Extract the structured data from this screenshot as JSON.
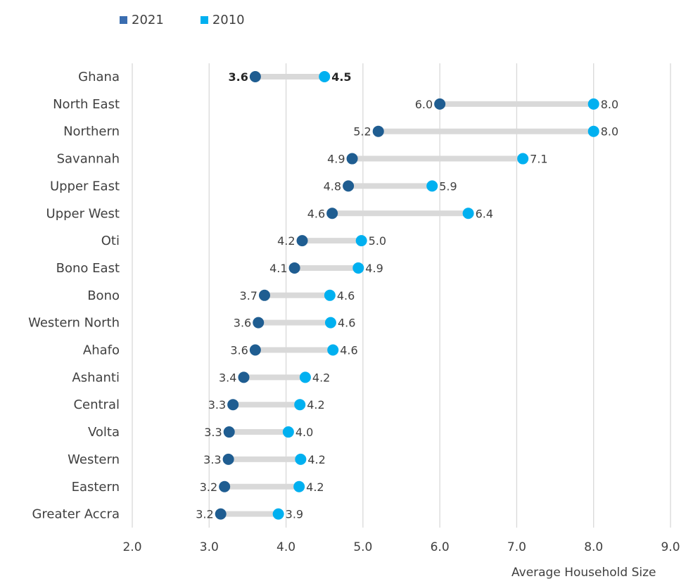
{
  "chart_data": {
    "type": "dumbbell",
    "xlabel": "Average Household Size",
    "xlim": [
      2.0,
      9.0
    ],
    "xticks": [
      "2.0",
      "3.0",
      "4.0",
      "5.0",
      "6.0",
      "7.0",
      "8.0",
      "9.0"
    ],
    "grid": true,
    "legend_position": "top-left",
    "series": [
      {
        "name": "2021",
        "color": "#1f5d91"
      },
      {
        "name": "2010",
        "color": "#00b0f0"
      }
    ],
    "categories": [
      "Ghana",
      "North East",
      "Northern",
      "Savannah",
      "Upper East",
      "Upper West",
      "Oti",
      "Bono East",
      "Bono",
      "Western North",
      "Ahafo",
      "Ashanti",
      "Central",
      "Volta",
      "Western",
      "Eastern",
      "Greater Accra"
    ],
    "values_2021": [
      3.6,
      6.0,
      5.2,
      4.86,
      4.81,
      4.6,
      4.21,
      4.11,
      3.72,
      3.64,
      3.6,
      3.45,
      3.31,
      3.26,
      3.25,
      3.2,
      3.15
    ],
    "values_2010": [
      4.5,
      8.0,
      8.0,
      7.08,
      5.9,
      6.37,
      4.98,
      4.94,
      4.57,
      4.58,
      4.61,
      4.25,
      4.18,
      4.03,
      4.19,
      4.17,
      3.9
    ],
    "labels_2021": [
      "3.6",
      "6.0",
      "5.2",
      "4.9",
      "4.8",
      "4.6",
      "4.2",
      "4.1",
      "3.7",
      "3.6",
      "3.6",
      "3.4",
      "3.3",
      "3.3",
      "3.3",
      "3.2",
      "3.2"
    ],
    "labels_2010": [
      "4.5",
      "8.0",
      "8.0",
      "7.1",
      "5.9",
      "6.4",
      "5.0",
      "4.9",
      "4.6",
      "4.6",
      "4.6",
      "4.2",
      "4.2",
      "4.0",
      "4.2",
      "4.2",
      "3.9"
    ],
    "bold_categories": [
      "Ghana"
    ],
    "connector_color": "#d9d9d9",
    "grid_color": "#d9d9d9"
  }
}
